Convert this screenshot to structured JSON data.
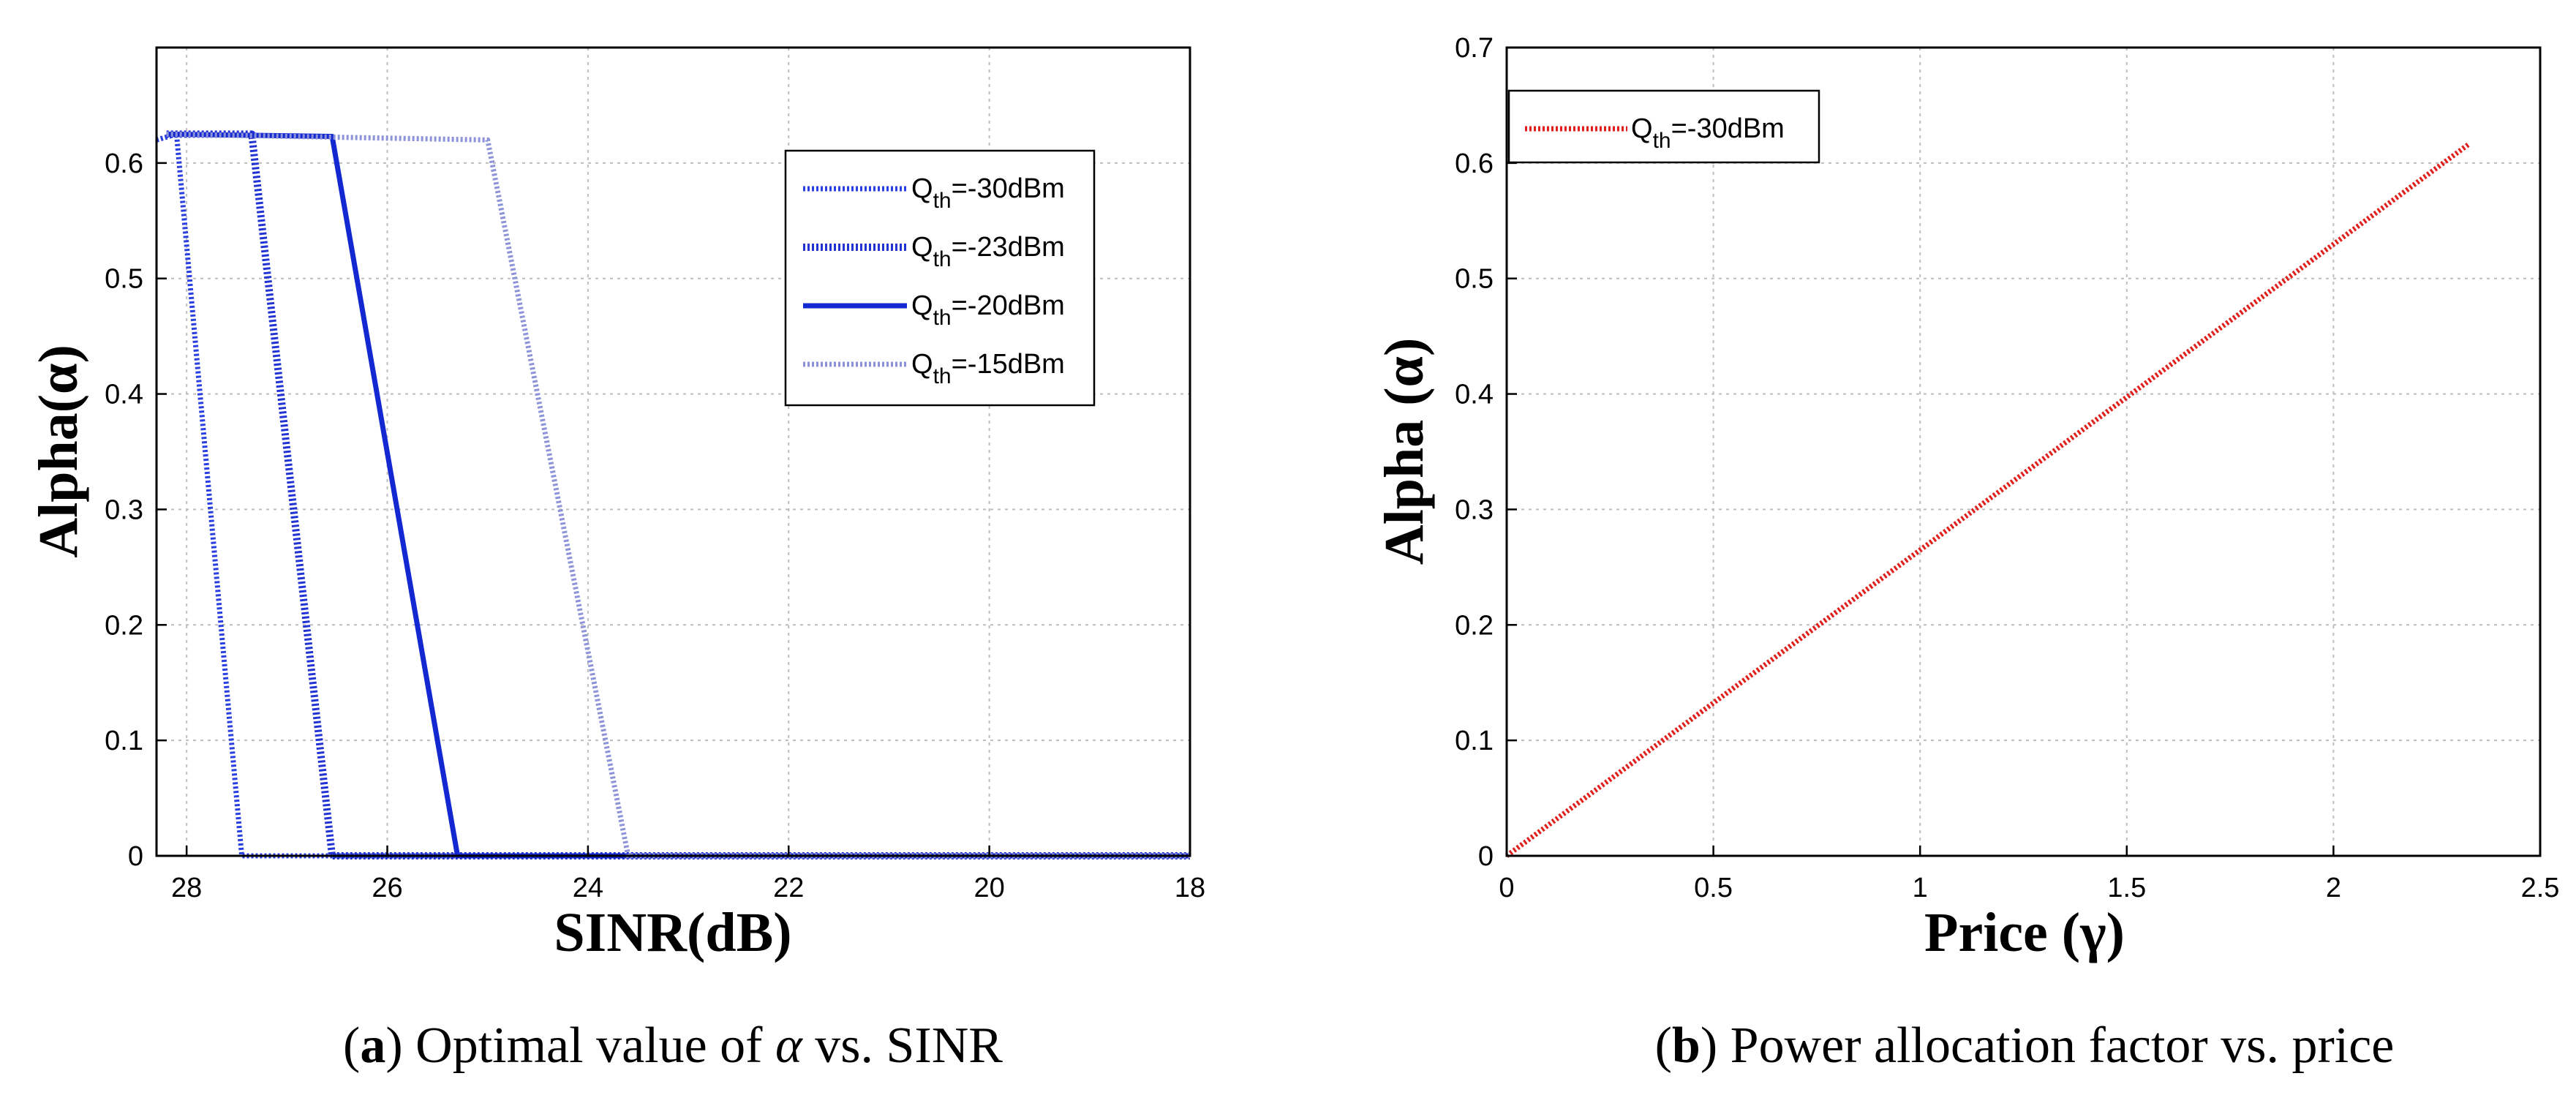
{
  "chart_data": [
    {
      "type": "line",
      "id": "a",
      "xlabel": "SINR(dB)",
      "ylabel": "Alpha(α)",
      "xlim": [
        28.3,
        18
      ],
      "ylim": [
        0,
        0.7
      ],
      "xticks": [
        28,
        26,
        24,
        22,
        20,
        18
      ],
      "yticks": [
        0,
        0.1,
        0.2,
        0.3,
        0.4,
        0.5,
        0.6
      ],
      "grid": true,
      "legend_position": "top-right",
      "series": [
        {
          "name": "Q",
          "sub": "th",
          "suffix": "=-30dBm",
          "color": "#2a3fe0",
          "style": "dotted",
          "x": [
            28.3,
            28.1,
            27.45,
            18
          ],
          "y": [
            0.62,
            0.625,
            0.0,
            0.0
          ]
        },
        {
          "name": "Q",
          "sub": "th",
          "suffix": "=-23dBm",
          "color": "#2233d4",
          "style": "dotted-thick",
          "x": [
            28.2,
            27.35,
            26.55,
            18
          ],
          "y": [
            0.625,
            0.625,
            0.0,
            0.0
          ]
        },
        {
          "name": "Q",
          "sub": "th",
          "suffix": "=-20dBm",
          "color": "#1428d2",
          "style": "solid",
          "x": [
            28.2,
            26.55,
            25.3,
            18
          ],
          "y": [
            0.625,
            0.623,
            0.0,
            0.0
          ]
        },
        {
          "name": "Q",
          "sub": "th",
          "suffix": "=-15dBm",
          "color": "#8d93d8",
          "style": "dotted",
          "x": [
            28.2,
            25.0,
            23.6,
            18
          ],
          "y": [
            0.625,
            0.62,
            0.0,
            0.0
          ]
        }
      ]
    },
    {
      "type": "line",
      "id": "b",
      "xlabel": "Price (γ)",
      "ylabel": "Alpha (α)",
      "xlim": [
        0,
        2.5
      ],
      "ylim": [
        0,
        0.7
      ],
      "xticks": [
        0,
        0.5,
        1,
        1.5,
        2,
        2.5
      ],
      "yticks": [
        0,
        0.1,
        0.2,
        0.3,
        0.4,
        0.5,
        0.6,
        0.7
      ],
      "grid": true,
      "legend_position": "top-left",
      "series": [
        {
          "name": "Q",
          "sub": "th",
          "suffix": "=-30dBm",
          "color": "#e0201c",
          "style": "dotted",
          "x": [
            0,
            2.33
          ],
          "y": [
            0,
            0.617
          ]
        }
      ]
    }
  ],
  "captions": {
    "a": {
      "letter": "a",
      "before": ") Optimal value of ",
      "symbol": "α",
      "after": " vs. SINR"
    },
    "b": {
      "letter": "b",
      "before": ") Power allocation factor vs. price"
    }
  }
}
